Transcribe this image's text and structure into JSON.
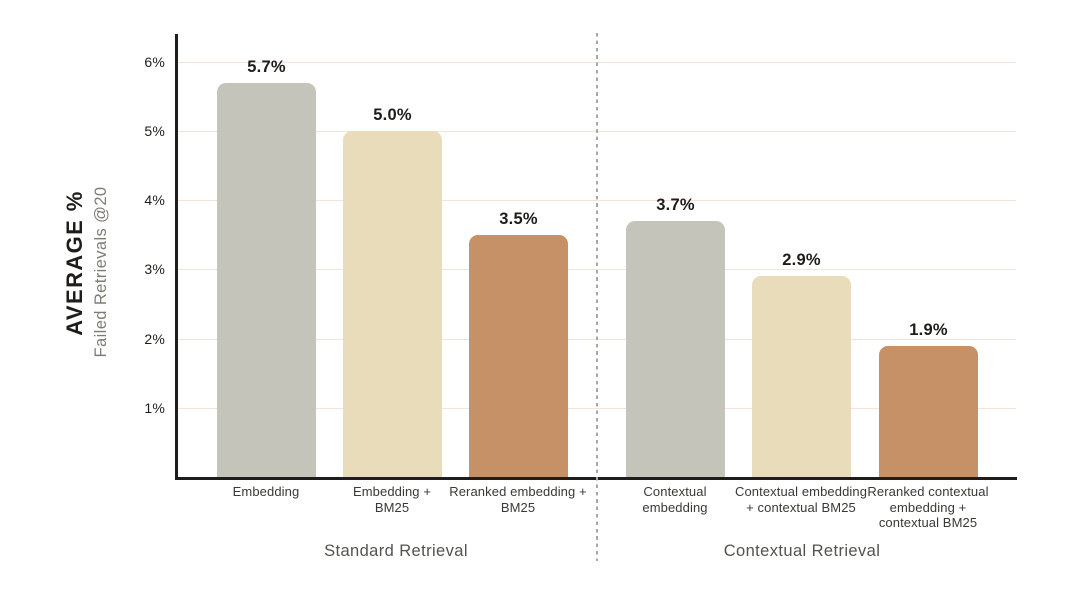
{
  "chart_data": {
    "type": "bar",
    "title": "",
    "ylabel": "AVERAGE %",
    "ylabel_sub": "Failed Retrievals @20",
    "ylim": [
      0,
      6.4
    ],
    "grid": true,
    "y_tick_labels": [
      "1%",
      "2%",
      "3%",
      "4%",
      "5%",
      "6%"
    ],
    "categories": [
      "Embedding",
      "Embedding + BM25",
      "Reranked embedding + BM25",
      "Contextual embedding",
      "Contextual embedding + contextual BM25",
      "Reranked contextual embedding + contextual BM25"
    ],
    "values": [
      5.7,
      5.0,
      3.5,
      3.7,
      2.9,
      1.9
    ],
    "groups": [
      {
        "label": "Standard Retrieval",
        "bars": [
          {
            "category": "Embedding",
            "category_lines": [
              "Embedding"
            ],
            "value": 5.7,
            "display": "5.7%",
            "color": "#c5c4ba"
          },
          {
            "category": "Embedding + BM25",
            "category_lines": [
              "Embedding +",
              "BM25"
            ],
            "value": 5.0,
            "display": "5.0%",
            "color": "#e9dcba"
          },
          {
            "category": "Reranked embedding + BM25",
            "category_lines": [
              "Reranked embedding +",
              "BM25"
            ],
            "value": 3.5,
            "display": "3.5%",
            "color": "#c79168"
          }
        ]
      },
      {
        "label": "Contextual Retrieval",
        "bars": [
          {
            "category": "Contextual embedding",
            "category_lines": [
              "Contextual",
              "embedding"
            ],
            "value": 3.7,
            "display": "3.7%",
            "color": "#c5c4ba"
          },
          {
            "category": "Contextual embedding + contextual BM25",
            "category_lines": [
              "Contextual embedding",
              "+ contextual BM25"
            ],
            "value": 2.9,
            "display": "2.9%",
            "color": "#e9dcba"
          },
          {
            "category": "Reranked contextual embedding + contextual BM25",
            "category_lines": [
              "Reranked contextual",
              "embedding +",
              "contextual BM25"
            ],
            "value": 1.9,
            "display": "1.9%",
            "color": "#c79168"
          }
        ]
      }
    ],
    "divider": {
      "style": "dashed",
      "between": [
        "Standard Retrieval",
        "Contextual Retrieval"
      ],
      "color": "#a9a8a4"
    },
    "colors": {
      "embedding_bar": "#c5c4ba",
      "embedding_bm25_bar": "#e9dcba",
      "reranked_bar": "#c79168",
      "gridline": "#f5e2d8",
      "axis": "#1e1d1b",
      "group_label_text": "#54534d",
      "subtitle_text": "#7e7c73",
      "background": "#ffffff"
    }
  }
}
